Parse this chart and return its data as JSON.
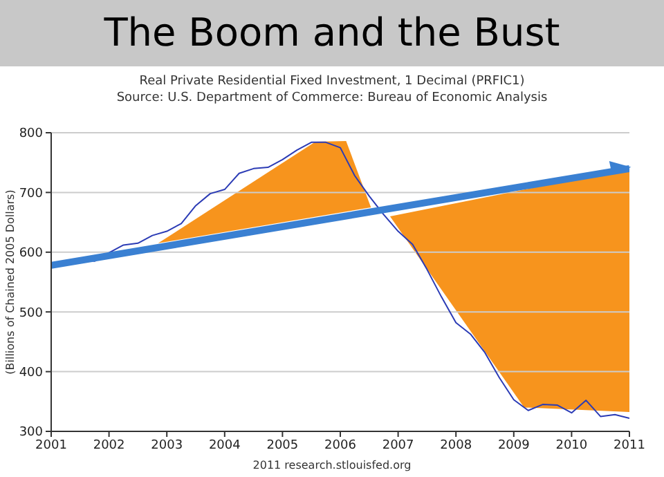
{
  "chart_data": {
    "type": "line",
    "title": "The Boom and the Bust",
    "subtitle": "Real Private Residential Fixed Investment, 1 Decimal (PRFIC1)",
    "annotations": [
      "Source: U.S. Department of Commerce: Bureau of Economic Analysis",
      "2011 research.stlouisfed.org"
    ],
    "ylabel": "(Billions of Chained 2005 Dollars)",
    "x": [
      2001,
      2001.25,
      2001.5,
      2001.75,
      2002,
      2002.25,
      2002.5,
      2002.75,
      2003,
      2003.25,
      2003.5,
      2003.75,
      2004,
      2004.25,
      2004.5,
      2004.75,
      2005,
      2005.25,
      2005.5,
      2005.75,
      2006,
      2006.25,
      2006.5,
      2006.75,
      2007,
      2007.25,
      2007.5,
      2007.75,
      2008,
      2008.25,
      2008.5,
      2008.75,
      2009,
      2009.25,
      2009.5,
      2009.75,
      2010,
      2010.25,
      2010.5,
      2010.75,
      2011
    ],
    "series": [
      {
        "color": "#2b3bb5",
        "values": [
          578,
          586,
          588,
          585,
          599,
          612,
          615,
          628,
          635,
          648,
          678,
          698,
          705,
          732,
          740,
          742,
          755,
          771,
          784,
          784,
          775,
          728,
          694,
          663,
          635,
          613,
          571,
          525,
          482,
          463,
          432,
          390,
          353,
          335,
          345,
          344,
          331,
          352,
          325,
          328,
          322
        ]
      },
      {
        "type": "line",
        "color": "#3a80d2",
        "x": [
          2001,
          2011
        ],
        "values": [
          578,
          740
        ]
      }
    ],
    "xlim": [
      2001,
      2011
    ],
    "xticks": [
      2001,
      2002,
      2003,
      2004,
      2005,
      2006,
      2007,
      2008,
      2009,
      2010,
      2011
    ],
    "ylim": [
      300,
      800
    ],
    "yticks": [
      300,
      400,
      500,
      600,
      700,
      800
    ],
    "grid": "y",
    "marker": "none",
    "line_style": "solid"
  }
}
